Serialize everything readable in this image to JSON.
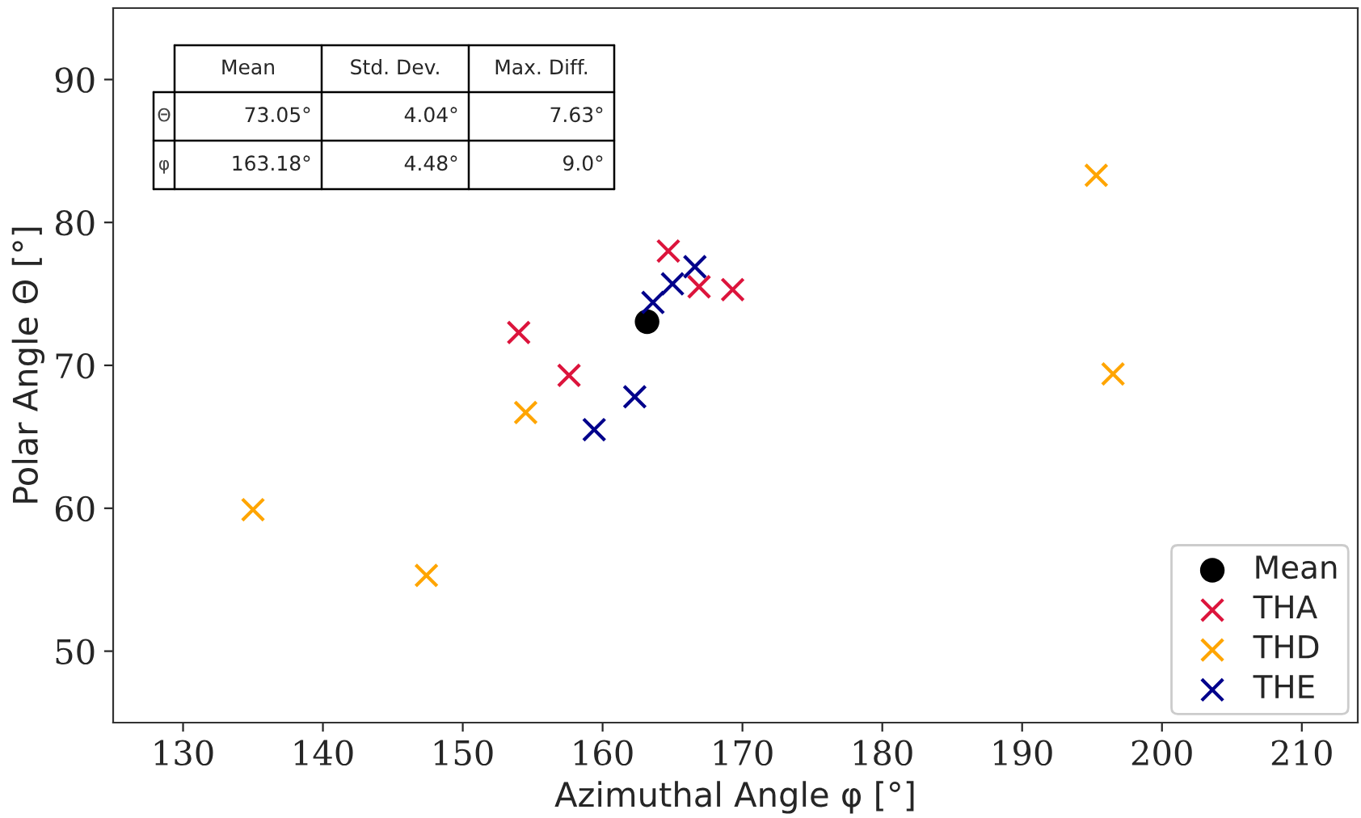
{
  "chart_data": {
    "type": "scatter",
    "xlabel": "Azimuthal Angle φ [°]",
    "ylabel": "Polar Angle Θ [°]",
    "xlim": [
      125,
      214
    ],
    "xticks": [
      130,
      140,
      150,
      160,
      170,
      180,
      190,
      200,
      210
    ],
    "ylim": [
      45,
      95
    ],
    "yticks": [
      50,
      60,
      70,
      80,
      90
    ],
    "grid": false,
    "legend": "bottom right",
    "annotations": [
      "Mean",
      "Std. Dev.",
      "Max. Diff.",
      "Θ",
      "73.05°",
      "4.04°",
      "7.63°",
      "φ",
      "163.18°",
      "4.48°",
      "9.0°"
    ],
    "series": [
      {
        "name": "Mean",
        "color": "#000000",
        "marker": "circle",
        "x": [
          163.18
        ],
        "values": [
          73.05
        ]
      },
      {
        "name": "THA",
        "color": "#dc143c",
        "marker": "cross",
        "x": [
          154.0,
          157.6,
          164.7,
          166.9,
          169.3
        ],
        "values": [
          72.3,
          69.3,
          78.0,
          75.5,
          75.3
        ]
      },
      {
        "name": "THD",
        "color": "#ffa500",
        "marker": "cross",
        "x": [
          154.5,
          135.0,
          147.4,
          195.3,
          196.5
        ],
        "values": [
          66.7,
          59.9,
          55.3,
          83.3,
          69.4
        ]
      },
      {
        "name": "THE",
        "color": "#00008b",
        "marker": "cross",
        "x": [
          166.6,
          165.0,
          163.6,
          162.3,
          159.4
        ],
        "values": [
          76.9,
          75.7,
          74.4,
          67.8,
          65.5
        ]
      }
    ]
  }
}
